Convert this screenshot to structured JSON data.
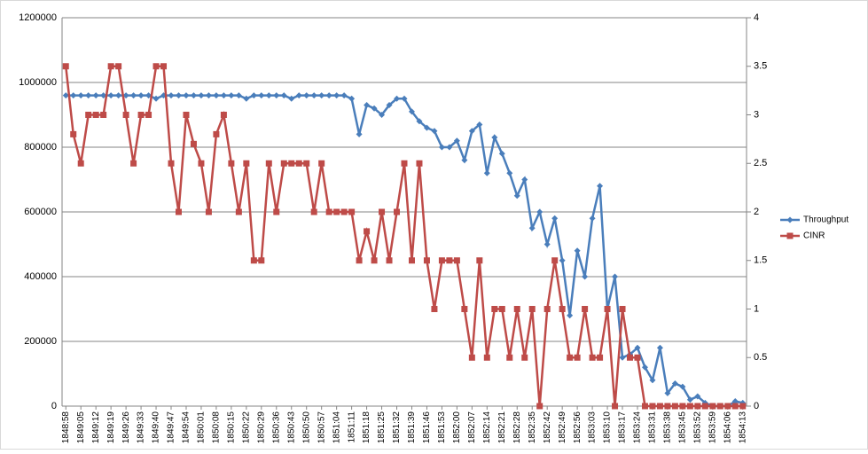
{
  "chart_data": {
    "type": "line",
    "categories": [
      "1848:58",
      null,
      "1849:05",
      null,
      "1849:12",
      null,
      "1849:19",
      null,
      "1849:26",
      null,
      "1849:33",
      null,
      "1849:40",
      null,
      "1849:47",
      null,
      "1849:54",
      null,
      "1850:01",
      null,
      "1850:08",
      null,
      "1850:15",
      null,
      "1850:22",
      null,
      "1850:29",
      null,
      "1850:36",
      null,
      "1850:43",
      null,
      "1850:50",
      null,
      "1850:57",
      null,
      "1851:04",
      null,
      "1851:11",
      null,
      "1851:18",
      null,
      "1851:25",
      null,
      "1851:32",
      null,
      "1851:39",
      null,
      "1851:46",
      null,
      "1851:53",
      null,
      "1852:00",
      null,
      "1852:07",
      null,
      "1852:14",
      null,
      "1852:21",
      null,
      "1852:28",
      null,
      "1852:35",
      null,
      "1852:42",
      null,
      "1852:49",
      null,
      "1852:56",
      null,
      "1853:03",
      null,
      "1853:10",
      null,
      "1853:17",
      null,
      "1853:24",
      null,
      "1853:31",
      null,
      "1853:38",
      null,
      "1853:45",
      null,
      "1853:52",
      null,
      "1853:59",
      null,
      "1854:06",
      null,
      "1854:13"
    ],
    "series": [
      {
        "name": "Throughput",
        "color": "#4a7ebb",
        "marker": "diamond",
        "values": [
          960000,
          960000,
          960000,
          960000,
          960000,
          960000,
          960000,
          960000,
          960000,
          960000,
          960000,
          960000,
          950000,
          960000,
          960000,
          960000,
          960000,
          960000,
          960000,
          960000,
          960000,
          960000,
          960000,
          960000,
          950000,
          960000,
          960000,
          960000,
          960000,
          960000,
          950000,
          960000,
          960000,
          960000,
          960000,
          960000,
          960000,
          960000,
          950000,
          840000,
          930000,
          920000,
          900000,
          930000,
          950000,
          950000,
          910000,
          880000,
          860000,
          850000,
          800000,
          800000,
          820000,
          760000,
          850000,
          870000,
          720000,
          830000,
          780000,
          720000,
          650000,
          700000,
          550000,
          600000,
          500000,
          580000,
          450000,
          280000,
          480000,
          400000,
          580000,
          680000,
          300000,
          400000,
          150000,
          160000,
          180000,
          120000,
          80000,
          180000,
          40000,
          70000,
          60000,
          20000,
          30000,
          10000,
          0,
          0,
          0,
          15000,
          10000
        ]
      },
      {
        "name": "CINR",
        "color": "#be4b48",
        "marker": "square",
        "axis": "y2",
        "values": [
          3.5,
          2.8,
          2.5,
          3,
          3,
          3,
          3.5,
          3.5,
          3,
          2.5,
          3,
          3,
          3.5,
          3.5,
          2.5,
          2,
          3,
          2.7,
          2.5,
          2,
          2.8,
          3,
          2.5,
          2,
          2.5,
          1.5,
          1.5,
          2.5,
          2,
          2.5,
          2.5,
          2.5,
          2.5,
          2,
          2.5,
          2,
          2,
          2,
          2,
          1.5,
          1.8,
          1.5,
          2,
          1.5,
          2,
          2.5,
          1.5,
          2.5,
          1.5,
          1,
          1.5,
          1.5,
          1.5,
          1,
          0.5,
          1.5,
          0.5,
          1,
          1,
          0.5,
          1,
          0.5,
          1,
          0,
          1,
          1.5,
          1,
          0.5,
          0.5,
          1,
          0.5,
          0.5,
          1,
          0,
          1,
          0.5,
          0.5,
          0,
          0,
          0,
          0,
          0,
          0,
          0,
          0,
          0,
          0,
          0,
          0,
          0,
          0
        ]
      }
    ],
    "ylim": [
      0,
      1200000
    ],
    "yticks": [
      0,
      200000,
      400000,
      600000,
      800000,
      1000000,
      1200000
    ],
    "y2lim": [
      0,
      4
    ],
    "y2ticks": [
      0,
      0.5,
      1,
      1.5,
      2,
      2.5,
      3,
      3.5,
      4
    ],
    "grid": true,
    "legend": "right"
  }
}
